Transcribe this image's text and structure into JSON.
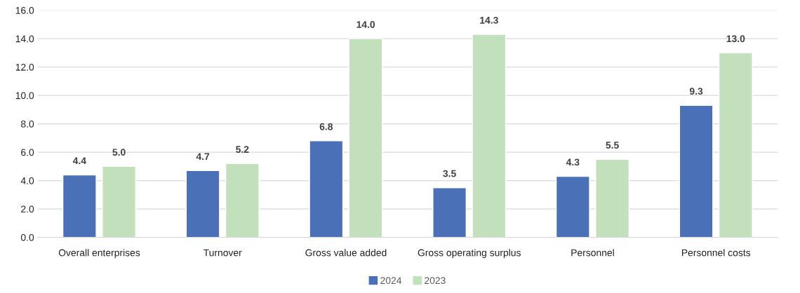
{
  "chart_data": {
    "type": "bar",
    "categories": [
      "Overall enterprises",
      "Turnover",
      "Gross value added",
      "Gross operating surplus",
      "Personnel",
      "Personnel costs"
    ],
    "series": [
      {
        "name": "2024",
        "color": "#4a70b7",
        "values": [
          4.4,
          4.7,
          6.8,
          3.5,
          4.3,
          9.3
        ],
        "value_labels": [
          "4.4",
          "4.7",
          "6.8",
          "3.5",
          "4.3",
          "9.3"
        ]
      },
      {
        "name": "2023",
        "color": "#c1e0bb",
        "values": [
          5.0,
          5.2,
          14.0,
          14.3,
          5.5,
          13.0
        ],
        "value_labels": [
          "5.0",
          "5.2",
          "14.0",
          "14.3",
          "5.5",
          "13.0"
        ]
      }
    ],
    "ylim": [
      0,
      16
    ],
    "yticks": [
      {
        "value": 0,
        "label": "0.0"
      },
      {
        "value": 2,
        "label": "2.0"
      },
      {
        "value": 4,
        "label": "4.0"
      },
      {
        "value": 6,
        "label": "6.0"
      },
      {
        "value": 8,
        "label": "8.0"
      },
      {
        "value": 10,
        "label": "10.0"
      },
      {
        "value": 12,
        "label": "12.0"
      },
      {
        "value": 14,
        "label": "14.0"
      },
      {
        "value": 16,
        "label": "16.0"
      }
    ],
    "grid": "y",
    "legend": "bottom"
  }
}
